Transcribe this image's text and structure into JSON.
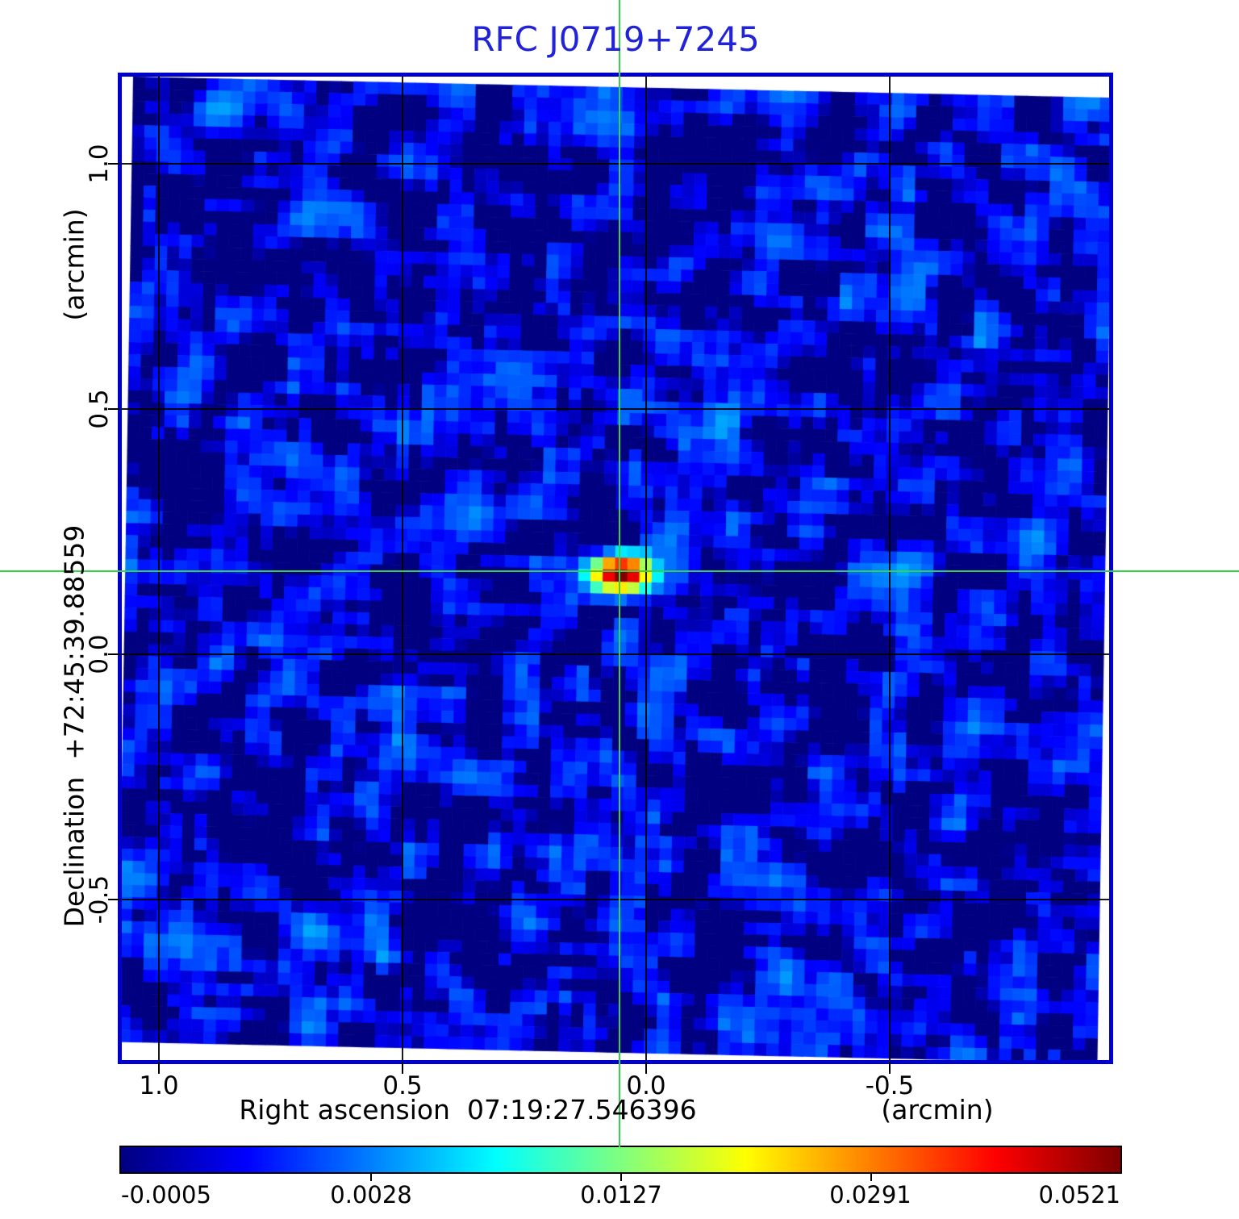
{
  "title": {
    "text": "RFC J0719+7245",
    "color": "#2222d6"
  },
  "chart_data": {
    "type": "heatmap",
    "title": "RFC J0719+7245",
    "xlabel": "Right ascension  07:19:27.546396",
    "xunit": "(arcmin)",
    "ylabel": "Declination  +72:45:39.88559",
    "yunit": "(arcmin)",
    "x_ticks": [
      "1.0",
      "0.5",
      "0.0",
      "-0.5"
    ],
    "y_ticks": [
      "1.0",
      "0.5",
      "0.0",
      "-0.5"
    ],
    "x_tick_values": [
      1.0,
      0.5,
      0.0,
      -0.5
    ],
    "y_tick_values": [
      1.0,
      0.5,
      0.0,
      -0.5
    ],
    "x_range_arcmin": [
      1.08,
      -0.95
    ],
    "y_range_arcmin": [
      -0.83,
      1.18
    ],
    "grid": true,
    "vmin": -0.0005,
    "vmax": 0.0521,
    "intensity_scale": "power-law gamma=2 (sqrt stretch)",
    "colorbar": {
      "tick_labels": [
        "-0.0005",
        "0.0028",
        "0.0127",
        "0.0291",
        "0.0521"
      ],
      "tick_values": [
        -0.0005,
        0.0028,
        0.0127,
        0.0291,
        0.0521
      ],
      "colormap": "jet",
      "gradient_stops": [
        "#000080",
        "#0000ff",
        "#00ffff",
        "#7dff7a",
        "#ffff00",
        "#ff0000",
        "#800000"
      ],
      "position": "bottom"
    },
    "peak": {
      "value": 0.0521,
      "x_arcmin": 0.06,
      "y_arcmin": 0.17,
      "description": "compact bright source at green crosshair center"
    },
    "crosshair_arcmin": {
      "x": 0.06,
      "y": 0.17
    }
  },
  "map": {
    "cells": 80,
    "seed": 7,
    "noise_amp": 0.0035,
    "data_width": 1214,
    "data_height": 1196,
    "shear_x": -0.016,
    "shear_y": 0.0215,
    "offset_x": 14,
    "peak_cell_x": 40.5,
    "peak_cell_y": 40.3,
    "sigma_x_cells": 1.45,
    "sigma_y_cells": 0.9,
    "sidelobe_amp": -0.0009,
    "sidelobe_dx_cells": 7
  },
  "colors": {
    "frame": "#0000cc",
    "crosshair": "#35d14a",
    "grid": "#000000",
    "text": "#000000",
    "background": "#ffffff"
  }
}
